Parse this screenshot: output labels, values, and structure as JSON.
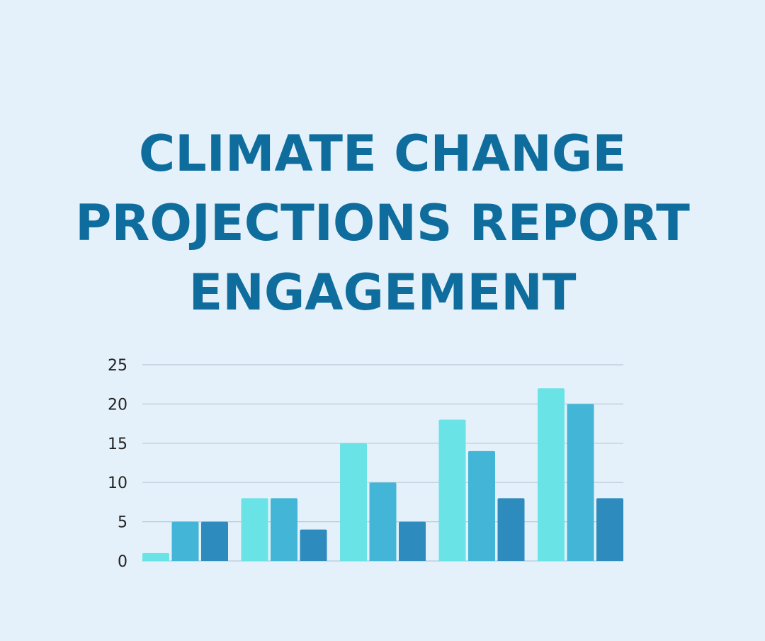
{
  "title_lines": [
    "CLIMATE CHANGE",
    "PROJECTIONS REPORT",
    "ENGAGEMENT"
  ],
  "colors": {
    "background": "#e4f1fa",
    "title": "#0f6d9d",
    "gridline": "#b7c9d6",
    "axis_text": "#222222"
  },
  "chart_data": {
    "type": "bar",
    "title": "CLIMATE CHANGE PROJECTIONS REPORT ENGAGEMENT",
    "xlabel": "",
    "ylabel": "",
    "ylim": [
      0,
      25
    ],
    "yticks": [
      0,
      5,
      10,
      15,
      20,
      25
    ],
    "grid": true,
    "legend": "none",
    "categories": [
      "",
      "",
      "",
      "",
      ""
    ],
    "series": [
      {
        "color": "#6ae3e6",
        "values": [
          1,
          8,
          15,
          18,
          22
        ]
      },
      {
        "color": "#43b6d7",
        "values": [
          5,
          8,
          10,
          14,
          20
        ]
      },
      {
        "color": "#2e8bbd",
        "values": [
          5,
          4,
          5,
          8,
          8
        ]
      }
    ]
  }
}
